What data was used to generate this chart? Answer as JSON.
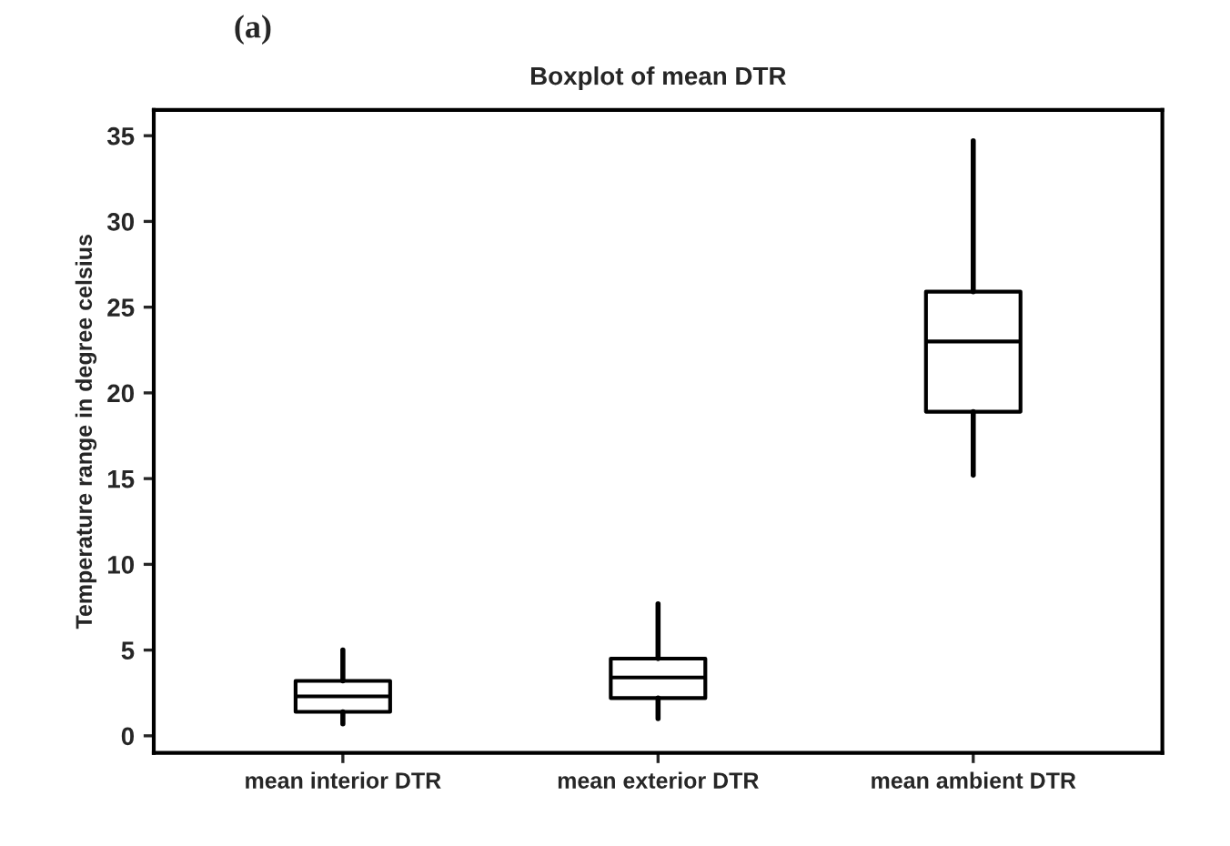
{
  "chart_data": {
    "type": "box",
    "title": "Boxplot of mean DTR",
    "ylabel": "Temperature range in degree celsius",
    "categories": [
      "mean interior DTR",
      "mean exterior DTR",
      "mean ambient DTR"
    ],
    "boxes": [
      {
        "low": 0.7,
        "q1": 1.4,
        "median": 2.3,
        "q3": 3.2,
        "high": 5.0
      },
      {
        "low": 1.0,
        "q1": 2.2,
        "median": 3.4,
        "q3": 4.5,
        "high": 7.7
      },
      {
        "low": 15.2,
        "q1": 18.9,
        "median": 23.0,
        "q3": 25.9,
        "high": 34.7
      }
    ],
    "color": "#000000",
    "ylim": [
      -1,
      36.5
    ],
    "yticks": [
      0,
      5,
      10,
      15,
      20,
      25,
      30,
      35
    ],
    "grid": false,
    "annotations": [
      "(a)"
    ]
  }
}
